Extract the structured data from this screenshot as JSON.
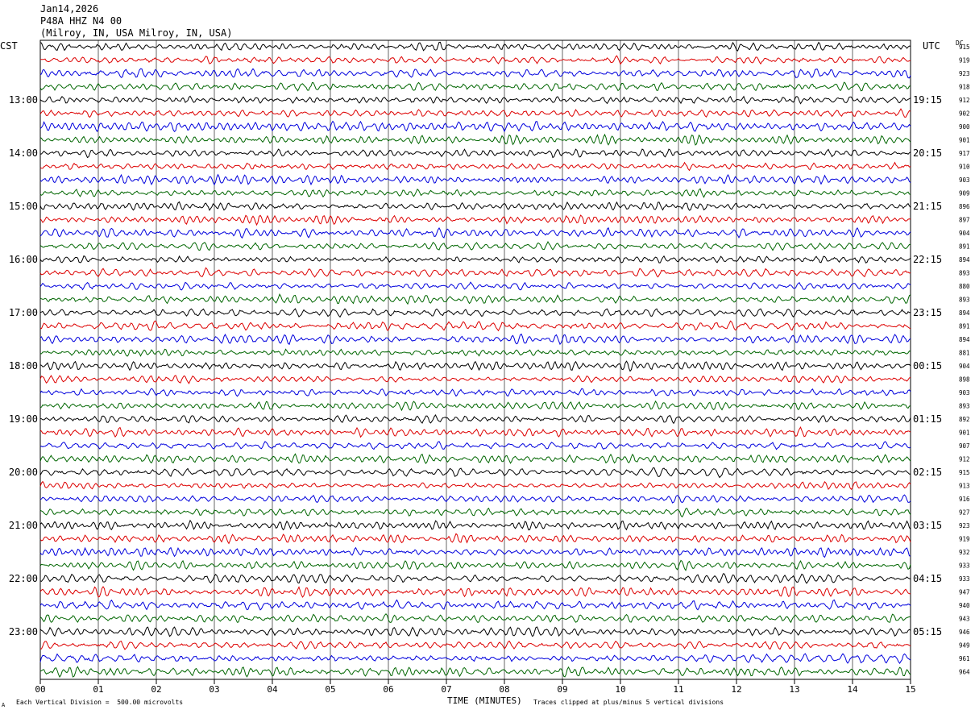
{
  "header": {
    "date": "Jan14,2026",
    "channel": "P48A HHZ N4 00",
    "location": "(Milroy, IN, USA Milroy, IN, USA)"
  },
  "labels": {
    "left_tz": "CST",
    "right_tz": "UTC",
    "dc_header": "DC"
  },
  "footer": {
    "scale_note": "Each Vertical Division =  500.00 microvolts",
    "clip_note": "Traces clipped at plus/minus 5 vertical divisions",
    "corner_mark": "A"
  },
  "chart_data": {
    "type": "line",
    "title": "",
    "xlabel": "TIME (MINUTES)",
    "ylabel": "",
    "xlim": [
      0,
      15
    ],
    "x_ticks": [
      "00",
      "01",
      "02",
      "03",
      "04",
      "05",
      "06",
      "07",
      "08",
      "09",
      "10",
      "11",
      "12",
      "13",
      "14",
      "15"
    ],
    "grid": "vertical lines at each minute",
    "traces_per_hour": 4,
    "trace_colors": [
      "#000000",
      "#dd0000",
      "#0000dd",
      "#006600"
    ],
    "left_hour_labels": [
      "13:00",
      "14:00",
      "15:00",
      "16:00",
      "17:00",
      "18:00",
      "19:00",
      "20:00",
      "21:00",
      "22:00",
      "23:00"
    ],
    "right_hour_labels": [
      "19:15",
      "20:15",
      "21:15",
      "22:15",
      "23:15",
      "00:15",
      "01:15",
      "02:15",
      "03:15",
      "04:15",
      "05:15"
    ],
    "dc_offsets": [
      915,
      919,
      923,
      918,
      912,
      902,
      900,
      901,
      917,
      910,
      903,
      909,
      896,
      897,
      904,
      891,
      894,
      893,
      880,
      893,
      894,
      891,
      894,
      881,
      904,
      898,
      903,
      893,
      892,
      901,
      907,
      912,
      915,
      913,
      916,
      927,
      923,
      919,
      932,
      933,
      933,
      947,
      940,
      943,
      946,
      949,
      961,
      964
    ]
  }
}
